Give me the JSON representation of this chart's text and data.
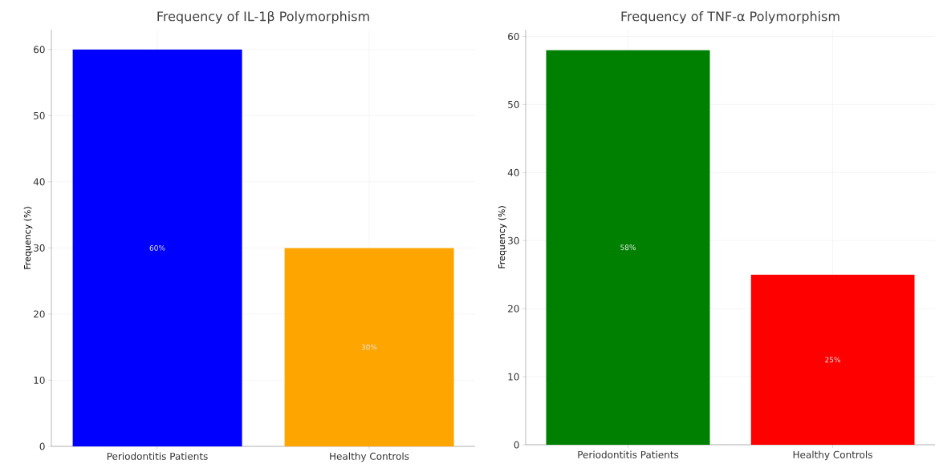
{
  "chart_data": [
    {
      "type": "bar",
      "title": "Frequency of IL-1β Polymorphism",
      "ylabel": "Frequency (%)",
      "categories": [
        "Periodontitis Patients",
        "Healthy Controls"
      ],
      "values": [
        60,
        30
      ],
      "colors": [
        "#0000ff",
        "#ffa500"
      ],
      "value_labels": [
        "60%",
        "30%"
      ],
      "ylim": [
        0,
        63
      ],
      "yticks": [
        0,
        10,
        20,
        30,
        40,
        50,
        60
      ],
      "grid": true
    },
    {
      "type": "bar",
      "title": "Frequency of TNF-α Polymorphism",
      "ylabel": "Frequency (%)",
      "categories": [
        "Periodontitis Patients",
        "Healthy Controls"
      ],
      "values": [
        58,
        25
      ],
      "colors": [
        "#008000",
        "#ff0000"
      ],
      "value_labels": [
        "58%",
        "25%"
      ],
      "ylim": [
        0,
        61
      ],
      "yticks": [
        0,
        10,
        20,
        30,
        40,
        50,
        60
      ],
      "grid": true
    }
  ]
}
